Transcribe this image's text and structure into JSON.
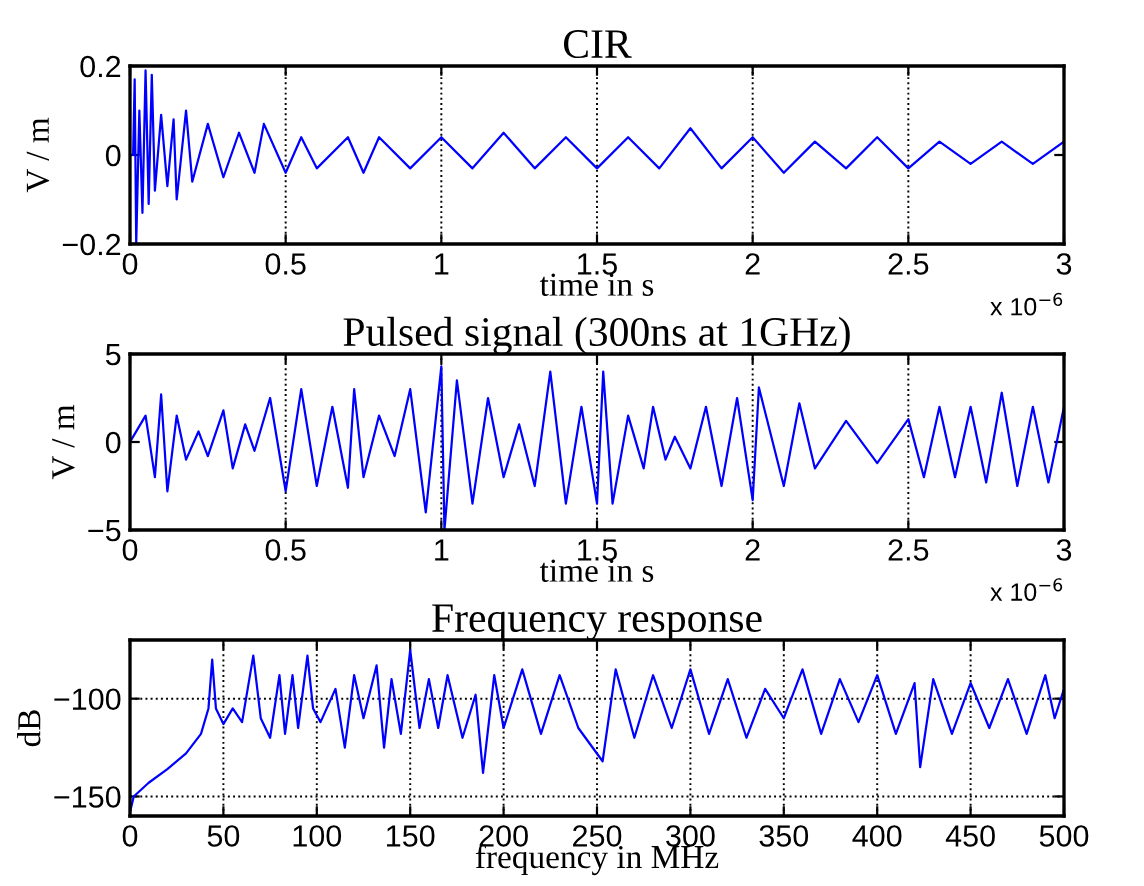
{
  "chart_data": [
    {
      "type": "line",
      "title": "CIR",
      "xlabel": "time in s",
      "ylabel": "V / m",
      "grid": "x",
      "annotations": [
        "x 10$^{−6}$"
      ],
      "xlim": [
        0,
        3
      ],
      "xticks": [
        0,
        0.5,
        1,
        1.5,
        2,
        2.5,
        3
      ],
      "ylim": [
        -0.2,
        0.2
      ],
      "yticks": [
        {
          "value": -0.2,
          "label": "−0.2"
        },
        0,
        0.2
      ],
      "series": [
        {
          "color": "#0000ff",
          "x": [
            0,
            0.01,
            0.015,
            0.02,
            0.03,
            0.04,
            0.05,
            0.06,
            0.07,
            0.08,
            0.1,
            0.12,
            0.14,
            0.15,
            0.18,
            0.2,
            0.25,
            0.3,
            0.35,
            0.4,
            0.43,
            0.5,
            0.55,
            0.6,
            0.7,
            0.75,
            0.8,
            0.9,
            1.0,
            1.1,
            1.2,
            1.3,
            1.4,
            1.5,
            1.6,
            1.7,
            1.8,
            1.9,
            2.0,
            2.1,
            2.2,
            2.3,
            2.4,
            2.5,
            2.6,
            2.7,
            2.8,
            2.9,
            3.0
          ],
          "values": [
            0,
            0,
            0.17,
            -0.2,
            0.1,
            -0.13,
            0.19,
            -0.11,
            0.18,
            -0.08,
            0.09,
            -0.07,
            0.08,
            -0.1,
            0.1,
            -0.06,
            0.07,
            -0.05,
            0.05,
            -0.04,
            0.07,
            -0.04,
            0.04,
            -0.03,
            0.04,
            -0.04,
            0.04,
            -0.03,
            0.04,
            -0.03,
            0.05,
            -0.03,
            0.04,
            -0.03,
            0.04,
            -0.03,
            0.06,
            -0.03,
            0.04,
            -0.04,
            0.03,
            -0.03,
            0.04,
            -0.03,
            0.03,
            -0.02,
            0.03,
            -0.02,
            0.03
          ]
        }
      ]
    },
    {
      "type": "line",
      "title": "Pulsed signal (300ns at 1GHz)",
      "xlabel": "time in s",
      "ylabel": "V / m",
      "grid": "x",
      "annotations": [
        "x 10$^{−6}$"
      ],
      "xlim": [
        0,
        3
      ],
      "xticks": [
        0,
        0.5,
        1,
        1.5,
        2,
        2.5,
        3
      ],
      "ylim": [
        -5,
        5
      ],
      "yticks": [
        {
          "value": -5,
          "label": "−5"
        },
        0,
        5
      ],
      "series": [
        {
          "color": "#0000ff",
          "x": [
            0,
            0.05,
            0.08,
            0.1,
            0.12,
            0.15,
            0.18,
            0.22,
            0.25,
            0.3,
            0.33,
            0.37,
            0.4,
            0.45,
            0.5,
            0.55,
            0.6,
            0.65,
            0.7,
            0.72,
            0.75,
            0.8,
            0.85,
            0.9,
            0.95,
            1.0,
            1.01,
            1.05,
            1.1,
            1.15,
            1.2,
            1.25,
            1.3,
            1.35,
            1.4,
            1.45,
            1.5,
            1.52,
            1.55,
            1.6,
            1.65,
            1.68,
            1.72,
            1.75,
            1.8,
            1.85,
            1.9,
            1.95,
            2.0,
            2.02,
            2.1,
            2.15,
            2.2,
            2.3,
            2.4,
            2.5,
            2.55,
            2.6,
            2.65,
            2.7,
            2.75,
            2.8,
            2.85,
            2.9,
            2.95,
            3.0
          ],
          "values": [
            0,
            1.5,
            -2,
            2.7,
            -2.8,
            1.5,
            -1,
            0.6,
            -0.8,
            1.8,
            -1.5,
            1,
            -0.5,
            2.5,
            -2.8,
            3,
            -2.5,
            2,
            -2.6,
            3,
            -2,
            1.5,
            -0.8,
            3,
            -4,
            4.3,
            -5,
            3.5,
            -3.5,
            2.5,
            -2,
            1,
            -2.5,
            4,
            -3.5,
            2,
            -3.5,
            4,
            -3.5,
            1.5,
            -1.5,
            2,
            -1,
            0.3,
            -1.5,
            2,
            -2.5,
            2.5,
            -3.3,
            3.1,
            -2.5,
            2.2,
            -1.5,
            1.2,
            -1.2,
            1.3,
            -2,
            2,
            -2,
            2,
            -2.3,
            2.8,
            -2.5,
            2,
            -2.3,
            2
          ]
        }
      ]
    },
    {
      "type": "line",
      "title": "Frequency response",
      "xlabel": "frequency in MHz",
      "ylabel": "dB",
      "grid": true,
      "xlim": [
        0,
        500
      ],
      "xticks": [
        0,
        50,
        100,
        150,
        200,
        250,
        300,
        350,
        400,
        450,
        500
      ],
      "ylim": [
        -160,
        -70
      ],
      "yticks": [
        {
          "value": -150,
          "label": "−150"
        },
        {
          "value": -100,
          "label": "−100"
        }
      ],
      "series": [
        {
          "color": "#0000ff",
          "x": [
            0,
            2,
            10,
            20,
            30,
            38,
            42,
            44,
            46,
            50,
            55,
            60,
            66,
            70,
            75,
            80,
            83,
            87,
            90,
            95,
            98,
            102,
            110,
            115,
            120,
            125,
            132,
            136,
            140,
            145,
            150,
            155,
            160,
            165,
            170,
            178,
            185,
            189,
            195,
            200,
            210,
            220,
            230,
            240,
            253,
            260,
            270,
            280,
            290,
            300,
            310,
            320,
            330,
            340,
            350,
            360,
            370,
            380,
            390,
            400,
            410,
            420,
            423,
            430,
            440,
            450,
            460,
            470,
            480,
            490,
            495,
            500
          ],
          "values": [
            -158,
            -150,
            -143,
            -136,
            -128,
            -118,
            -105,
            -80,
            -105,
            -113,
            -105,
            -112,
            -78,
            -110,
            -120,
            -88,
            -118,
            -88,
            -115,
            -78,
            -105,
            -112,
            -95,
            -125,
            -88,
            -110,
            -83,
            -125,
            -90,
            -118,
            -75,
            -115,
            -90,
            -115,
            -88,
            -120,
            -98,
            -138,
            -88,
            -115,
            -85,
            -118,
            -88,
            -115,
            -132,
            -85,
            -120,
            -88,
            -115,
            -85,
            -118,
            -90,
            -120,
            -95,
            -110,
            -85,
            -118,
            -90,
            -112,
            -88,
            -118,
            -92,
            -135,
            -90,
            -118,
            -92,
            -115,
            -90,
            -118,
            -88,
            -110,
            -95
          ]
        }
      ]
    }
  ]
}
